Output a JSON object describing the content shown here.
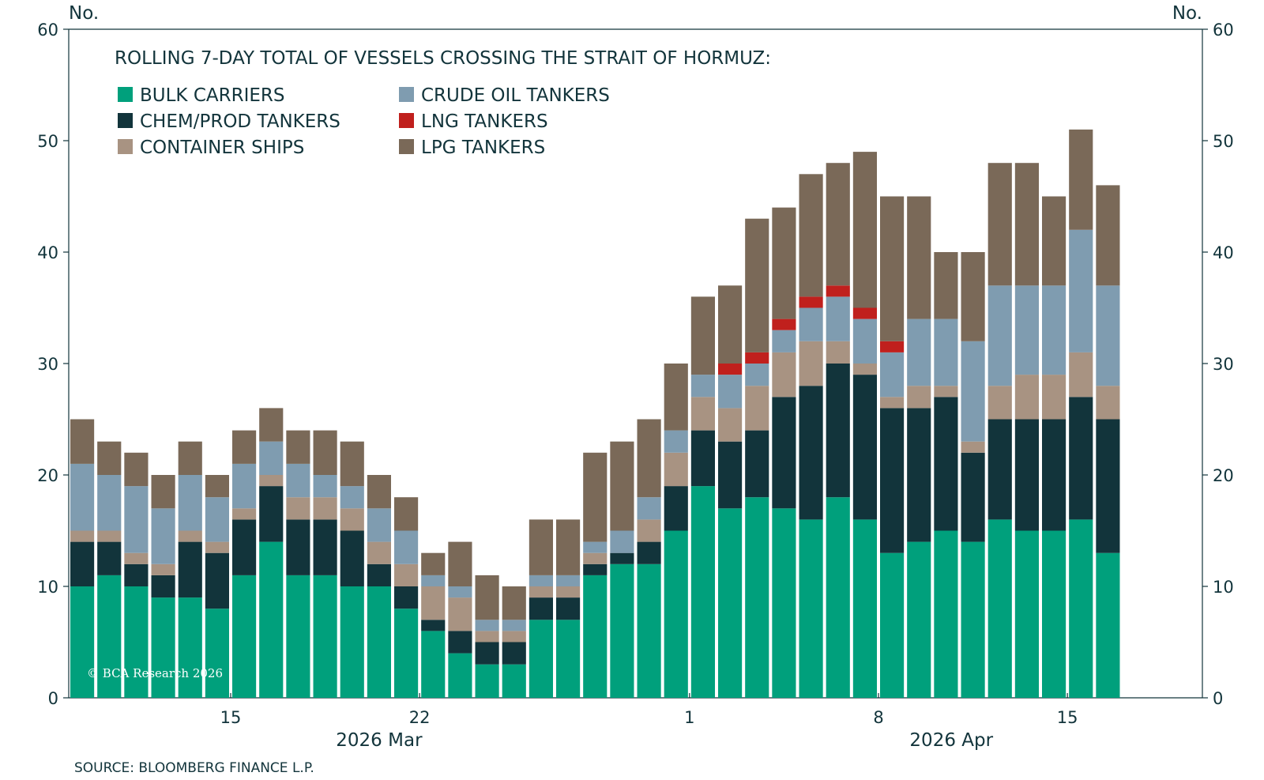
{
  "chart_data": {
    "type": "bar",
    "stacked": true,
    "title": "ROLLING 7-DAY TOTAL OF VESSELS CROSSING THE STRAIT OF HORMUZ:",
    "y_unit_left": "No.",
    "y_unit_right": "No.",
    "ylim": [
      0,
      60
    ],
    "yticks": [
      0,
      10,
      20,
      30,
      40,
      50,
      60
    ],
    "grid": false,
    "legend_position": "top-left",
    "x_ticks": [
      {
        "day": 15,
        "label": "15"
      },
      {
        "day": 22,
        "label": "22"
      },
      {
        "day": 32,
        "label": "1"
      },
      {
        "day": 39,
        "label": "8"
      },
      {
        "day": 46,
        "label": "15"
      }
    ],
    "x_range_days": [
      9,
      51
    ],
    "month_labels": [
      {
        "label": "2026 Mar",
        "center_day": 20.5
      },
      {
        "label": "2026 Apr",
        "center_day": 41.7
      }
    ],
    "dates": [
      "Mar 9",
      "Mar 10",
      "Mar 11",
      "Mar 12",
      "Mar 13",
      "Mar 14",
      "Mar 15",
      "Mar 16",
      "Mar 17",
      "Mar 18",
      "Mar 19",
      "Mar 20",
      "Mar 21",
      "Mar 22",
      "Mar 23",
      "Mar 24",
      "Mar 25",
      "Mar 26",
      "Mar 27",
      "Mar 28",
      "Mar 29",
      "Mar 30",
      "Mar 31",
      "Apr 1",
      "Apr 2",
      "Apr 3",
      "Apr 4",
      "Apr 5",
      "Apr 6",
      "Apr 7",
      "Apr 8",
      "Apr 9",
      "Apr 10",
      "Apr 11",
      "Apr 12",
      "Apr 13",
      "Apr 14",
      "Apr 15",
      "Apr 16"
    ],
    "series": [
      {
        "name": "BULK CARRIERS",
        "color": "#00a07c",
        "values": [
          10,
          11,
          10,
          9,
          9,
          8,
          11,
          14,
          11,
          11,
          10,
          10,
          8,
          6,
          4,
          3,
          3,
          7,
          7,
          11,
          12,
          12,
          15,
          19,
          17,
          18,
          17,
          16,
          18,
          16,
          13,
          14,
          15,
          14,
          16,
          15,
          15,
          16,
          13
        ]
      },
      {
        "name": "CHEM/PROD TANKERS",
        "color": "#12343b",
        "values": [
          4,
          3,
          2,
          2,
          5,
          5,
          5,
          5,
          5,
          5,
          5,
          2,
          2,
          1,
          2,
          2,
          2,
          2,
          2,
          1,
          1,
          2,
          4,
          5,
          6,
          6,
          10,
          12,
          12,
          13,
          13,
          12,
          12,
          8,
          9,
          10,
          10,
          11,
          12
        ]
      },
      {
        "name": "CONTAINER SHIPS",
        "color": "#a89382",
        "values": [
          1,
          1,
          1,
          1,
          1,
          1,
          1,
          1,
          2,
          2,
          2,
          2,
          2,
          3,
          3,
          1,
          1,
          1,
          1,
          1,
          0,
          2,
          3,
          3,
          3,
          4,
          4,
          4,
          2,
          1,
          1,
          2,
          1,
          1,
          3,
          4,
          4,
          4,
          3
        ]
      },
      {
        "name": "CRUDE OIL TANKERS",
        "color": "#7f9cb0",
        "values": [
          6,
          5,
          6,
          5,
          5,
          4,
          4,
          3,
          3,
          2,
          2,
          3,
          3,
          1,
          1,
          1,
          1,
          1,
          1,
          1,
          2,
          2,
          2,
          2,
          3,
          2,
          2,
          3,
          4,
          4,
          4,
          6,
          6,
          9,
          9,
          8,
          8,
          11,
          9
        ]
      },
      {
        "name": "LNG TANKERS",
        "color": "#c0201d",
        "values": [
          0,
          0,
          0,
          0,
          0,
          0,
          0,
          0,
          0,
          0,
          0,
          0,
          0,
          0,
          0,
          0,
          0,
          0,
          0,
          0,
          0,
          0,
          0,
          0,
          1,
          1,
          1,
          1,
          1,
          1,
          1,
          0,
          0,
          0,
          0,
          0,
          0,
          0,
          0
        ]
      },
      {
        "name": "LPG TANKERS",
        "color": "#7a6958",
        "values": [
          4,
          3,
          3,
          3,
          3,
          2,
          3,
          3,
          3,
          4,
          4,
          3,
          3,
          2,
          4,
          4,
          3,
          5,
          5,
          8,
          8,
          7,
          6,
          7,
          7,
          12,
          10,
          11,
          11,
          14,
          13,
          11,
          6,
          8,
          11,
          11,
          8,
          9,
          9
        ]
      }
    ],
    "legend_left": [
      "BULK CARRIERS",
      "CHEM/PROD TANKERS",
      "CONTAINER SHIPS"
    ],
    "legend_right": [
      "CRUDE OIL TANKERS",
      "LNG TANKERS",
      "LPG TANKERS"
    ]
  },
  "credit": "© BCA Research 2026",
  "source": "SOURCE: BLOOMBERG FINANCE L.P."
}
